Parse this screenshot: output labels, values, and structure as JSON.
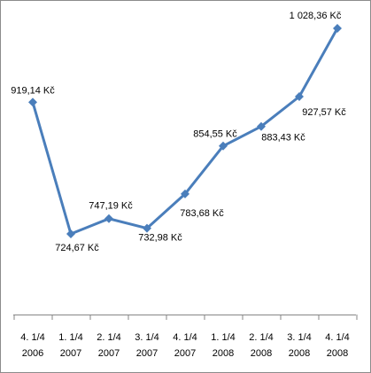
{
  "chart_data": {
    "type": "line",
    "categories": [
      "4. 1/4\n2006",
      "1. 1/4\n2007",
      "2. 1/4\n2007",
      "3. 1/4\n2007",
      "4. 1/4\n2007",
      "1. 1/4\n2008",
      "2. 1/4\n2008",
      "3. 1/4\n2008",
      "4. 1/4\n2008"
    ],
    "values": [
      919.14,
      724.67,
      747.19,
      732.98,
      783.68,
      854.55,
      883.43,
      927.57,
      1028.36
    ],
    "value_labels": [
      "919,14 Kč",
      "724,67 Kč",
      "747,19 Kč",
      "732,98 Kč",
      "783,68 Kč",
      "854,55 Kč",
      "883,43 Kč",
      "927,57 Kč",
      "1 028,36 Kč"
    ],
    "color": "#4a7ebb"
  }
}
